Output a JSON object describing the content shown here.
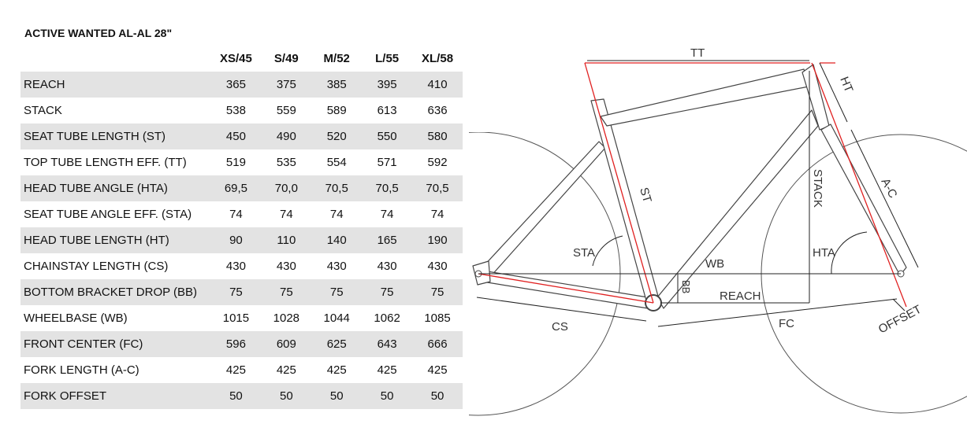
{
  "title": "ACTIVE WANTED AL-AL 28\"",
  "sizes": [
    "XS/45",
    "S/49",
    "M/52",
    "L/55",
    "XL/58"
  ],
  "rows": [
    {
      "label": "REACH",
      "values": [
        "365",
        "375",
        "385",
        "395",
        "410"
      ]
    },
    {
      "label": "STACK",
      "values": [
        "538",
        "559",
        "589",
        "613",
        "636"
      ]
    },
    {
      "label": "SEAT TUBE LENGTH (ST)",
      "values": [
        "450",
        "490",
        "520",
        "550",
        "580"
      ]
    },
    {
      "label": "TOP TUBE LENGTH EFF. (TT)",
      "values": [
        "519",
        "535",
        "554",
        "571",
        "592"
      ]
    },
    {
      "label": "HEAD TUBE ANGLE (HTA)",
      "values": [
        "69,5",
        "70,0",
        "70,5",
        "70,5",
        "70,5"
      ]
    },
    {
      "label": "SEAT TUBE ANGLE EFF. (STA)",
      "values": [
        "74",
        "74",
        "74",
        "74",
        "74"
      ]
    },
    {
      "label": "HEAD TUBE LENGTH (HT)",
      "values": [
        "90",
        "110",
        "140",
        "165",
        "190"
      ]
    },
    {
      "label": "CHAINSTAY LENGTH (CS)",
      "values": [
        "430",
        "430",
        "430",
        "430",
        "430"
      ]
    },
    {
      "label": "BOTTOM BRACKET DROP (BB)",
      "values": [
        "75",
        "75",
        "75",
        "75",
        "75"
      ]
    },
    {
      "label": "WHEELBASE (WB)",
      "values": [
        "1015",
        "1028",
        "1044",
        "1062",
        "1085"
      ]
    },
    {
      "label": "FRONT CENTER (FC)",
      "values": [
        "596",
        "609",
        "625",
        "643",
        "666"
      ]
    },
    {
      "label": "FORK LENGTH (A-C)",
      "values": [
        "425",
        "425",
        "425",
        "425",
        "425"
      ]
    },
    {
      "label": "FORK OFFSET",
      "values": [
        "50",
        "50",
        "50",
        "50",
        "50"
      ]
    }
  ],
  "diagram": {
    "labels": {
      "tt": "TT",
      "ht": "HT",
      "st": "ST",
      "stack": "STACK",
      "ac": "A-C",
      "sta": "STA",
      "hta": "HTA",
      "wb": "WB",
      "bb": "BB",
      "reach": "REACH",
      "cs": "CS",
      "fc": "FC",
      "offset": "OFFSET"
    },
    "colors": {
      "frame": "#444444",
      "highlight": "#e02020"
    }
  }
}
